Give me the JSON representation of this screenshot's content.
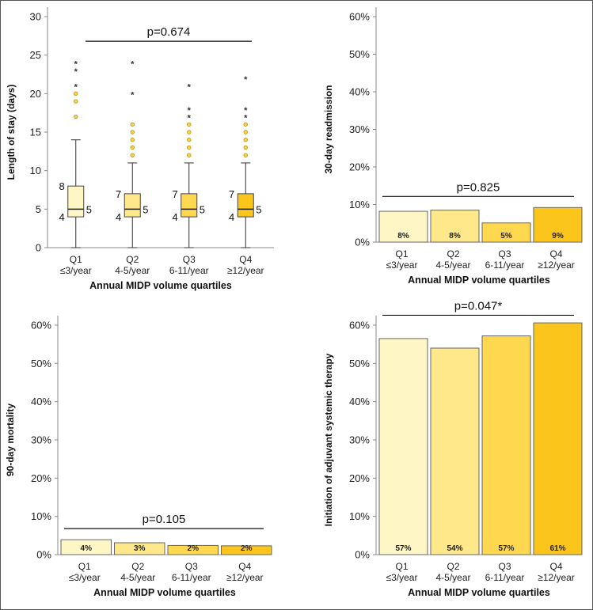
{
  "figure": {
    "border_color": "#555555"
  },
  "chart_data": [
    {
      "type": "box",
      "panel": "top-left",
      "ylabel": "Length of stay (days)",
      "xlabel": "Annual MIDP volume quartiles",
      "ylim": [
        0,
        30
      ],
      "yticks": [
        0,
        5,
        10,
        15,
        20,
        25,
        30
      ],
      "p_value": "p=0.674",
      "categories": [
        {
          "q": "Q1",
          "range": "≤3/year"
        },
        {
          "q": "Q2",
          "range": "4-5/year"
        },
        {
          "q": "Q3",
          "range": "6-11/year"
        },
        {
          "q": "Q4",
          "range": "≥12/year"
        }
      ],
      "colors": [
        "#FFF6C5",
        "#FFE88A",
        "#FFD84F",
        "#FCC51C"
      ],
      "boxes": [
        {
          "q1": 4,
          "median": 5,
          "q3": 8,
          "whisker_low": 0,
          "whisker_high": 14,
          "outliers": [
            17,
            19,
            20
          ],
          "extremes": [
            21,
            23,
            24
          ],
          "q1_label": "4",
          "median_label": "5",
          "q3_label": "8"
        },
        {
          "q1": 4,
          "median": 5,
          "q3": 7,
          "whisker_low": 0,
          "whisker_high": 11,
          "outliers": [
            12,
            13,
            14,
            15,
            16
          ],
          "extremes": [
            20,
            24
          ],
          "q1_label": "4",
          "median_label": "5",
          "q3_label": "7"
        },
        {
          "q1": 4,
          "median": 5,
          "q3": 7,
          "whisker_low": 0,
          "whisker_high": 11,
          "outliers": [
            12,
            13,
            14,
            15,
            16
          ],
          "extremes": [
            17,
            18,
            21
          ],
          "q1_label": "4",
          "median_label": "5",
          "q3_label": "7"
        },
        {
          "q1": 4,
          "median": 5,
          "q3": 7,
          "whisker_low": 0,
          "whisker_high": 11,
          "outliers": [
            12,
            13,
            14,
            15,
            16
          ],
          "extremes": [
            17,
            18,
            22
          ],
          "q1_label": "4",
          "median_label": "5",
          "q3_label": "7"
        }
      ],
      "star_symbol": "*"
    },
    {
      "type": "bar",
      "panel": "top-right",
      "ylabel": "30-day readmission",
      "xlabel": "Annual MIDP volume quartiles",
      "ylim": [
        0,
        60
      ],
      "yticks": [
        "0%",
        "10%",
        "20%",
        "30%",
        "40%",
        "50%",
        "60%"
      ],
      "p_value": "p=0.825",
      "values": [
        8.2,
        8.5,
        5.1,
        9.2
      ],
      "labels": [
        "8%",
        "8%",
        "5%",
        "9%"
      ]
    },
    {
      "type": "bar",
      "panel": "bottom-left",
      "ylabel": "90-day mortality",
      "xlabel": "Annual MIDP volume quartiles",
      "ylim": [
        0,
        60
      ],
      "yticks": [
        "0%",
        "10%",
        "20%",
        "30%",
        "40%",
        "50%",
        "60%"
      ],
      "p_value": "p=0.105",
      "values": [
        3.9,
        3.1,
        2.4,
        2.3
      ],
      "labels": [
        "4%",
        "3%",
        "2%",
        "2%"
      ]
    },
    {
      "type": "bar",
      "panel": "bottom-right",
      "ylabel": "Initiation of adjuvant systemic therapy",
      "xlabel": "Annual MIDP volume quartiles",
      "ylim": [
        0,
        60
      ],
      "yticks": [
        "0%",
        "10%",
        "20%",
        "30%",
        "40%",
        "50%",
        "60%"
      ],
      "p_value": "p=0.047*",
      "values": [
        56.5,
        54.0,
        57.2,
        60.6
      ],
      "labels": [
        "57%",
        "54%",
        "57%",
        "61%"
      ]
    }
  ]
}
